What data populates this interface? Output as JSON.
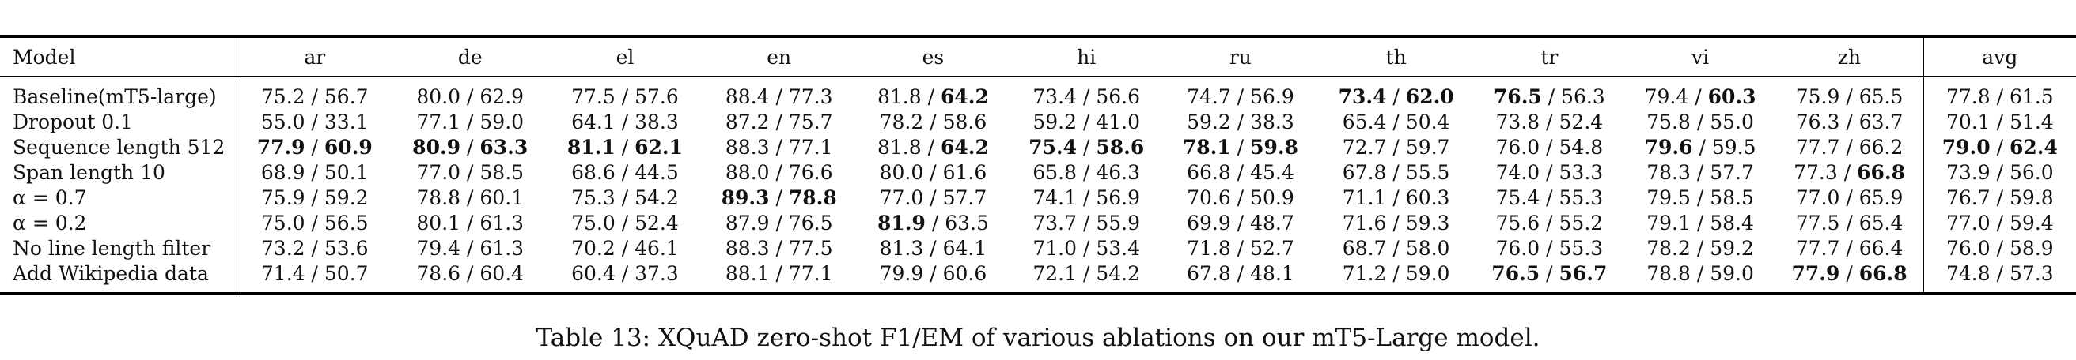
{
  "table": {
    "headers": [
      "Model",
      "ar",
      "de",
      "el",
      "en",
      "es",
      "hi",
      "ru",
      "th",
      "tr",
      "vi",
      "zh",
      "avg"
    ],
    "rows": [
      {
        "model": "Baseline(mT5-large)",
        "cells": [
          {
            "f1": "75.2",
            "em": "56.7"
          },
          {
            "f1": "80.0",
            "em": "62.9"
          },
          {
            "f1": "77.5",
            "em": "57.6"
          },
          {
            "f1": "88.4",
            "em": "77.3"
          },
          {
            "f1": "81.8",
            "em": "64.2",
            "em_bold": true
          },
          {
            "f1": "73.4",
            "em": "56.6"
          },
          {
            "f1": "74.7",
            "em": "56.9"
          },
          {
            "f1": "73.4",
            "em": "62.0",
            "f1_bold": true,
            "em_bold": true
          },
          {
            "f1": "76.5",
            "em": "56.3",
            "f1_bold": true
          },
          {
            "f1": "79.4",
            "em": "60.3",
            "em_bold": true
          },
          {
            "f1": "75.9",
            "em": "65.5"
          },
          {
            "f1": "77.8",
            "em": "61.5"
          }
        ]
      },
      {
        "model": "Dropout 0.1",
        "cells": [
          {
            "f1": "55.0",
            "em": "33.1"
          },
          {
            "f1": "77.1",
            "em": "59.0"
          },
          {
            "f1": "64.1",
            "em": "38.3"
          },
          {
            "f1": "87.2",
            "em": "75.7"
          },
          {
            "f1": "78.2",
            "em": "58.6"
          },
          {
            "f1": "59.2",
            "em": "41.0"
          },
          {
            "f1": "59.2",
            "em": "38.3"
          },
          {
            "f1": "65.4",
            "em": "50.4"
          },
          {
            "f1": "73.8",
            "em": "52.4"
          },
          {
            "f1": "75.8",
            "em": "55.0"
          },
          {
            "f1": "76.3",
            "em": "63.7"
          },
          {
            "f1": "70.1",
            "em": "51.4"
          }
        ]
      },
      {
        "model": "Sequence length 512",
        "cells": [
          {
            "f1": "77.9",
            "em": "60.9",
            "f1_bold": true,
            "em_bold": true
          },
          {
            "f1": "80.9",
            "em": "63.3",
            "f1_bold": true,
            "em_bold": true
          },
          {
            "f1": "81.1",
            "em": "62.1",
            "f1_bold": true,
            "em_bold": true
          },
          {
            "f1": "88.3",
            "em": "77.1"
          },
          {
            "f1": "81.8",
            "em": "64.2",
            "em_bold": true
          },
          {
            "f1": "75.4",
            "em": "58.6",
            "f1_bold": true,
            "em_bold": true
          },
          {
            "f1": "78.1",
            "em": "59.8",
            "f1_bold": true,
            "em_bold": true
          },
          {
            "f1": "72.7",
            "em": "59.7"
          },
          {
            "f1": "76.0",
            "em": "54.8"
          },
          {
            "f1": "79.6",
            "em": "59.5",
            "f1_bold": true
          },
          {
            "f1": "77.7",
            "em": "66.2"
          },
          {
            "f1": "79.0",
            "em": "62.4",
            "f1_bold": true,
            "em_bold": true
          }
        ]
      },
      {
        "model": "Span length 10",
        "cells": [
          {
            "f1": "68.9",
            "em": "50.1"
          },
          {
            "f1": "77.0",
            "em": "58.5"
          },
          {
            "f1": "68.6",
            "em": "44.5"
          },
          {
            "f1": "88.0",
            "em": "76.6"
          },
          {
            "f1": "80.0",
            "em": "61.6"
          },
          {
            "f1": "65.8",
            "em": "46.3"
          },
          {
            "f1": "66.8",
            "em": "45.4"
          },
          {
            "f1": "67.8",
            "em": "55.5"
          },
          {
            "f1": "74.0",
            "em": "53.3"
          },
          {
            "f1": "78.3",
            "em": "57.7"
          },
          {
            "f1": "77.3",
            "em": "66.8",
            "em_bold": true
          },
          {
            "f1": "73.9",
            "em": "56.0"
          }
        ]
      },
      {
        "model": "α = 0.7",
        "cells": [
          {
            "f1": "75.9",
            "em": "59.2"
          },
          {
            "f1": "78.8",
            "em": "60.1"
          },
          {
            "f1": "75.3",
            "em": "54.2"
          },
          {
            "f1": "89.3",
            "em": "78.8",
            "f1_bold": true,
            "em_bold": true
          },
          {
            "f1": "77.0",
            "em": "57.7"
          },
          {
            "f1": "74.1",
            "em": "56.9"
          },
          {
            "f1": "70.6",
            "em": "50.9"
          },
          {
            "f1": "71.1",
            "em": "60.3"
          },
          {
            "f1": "75.4",
            "em": "55.3"
          },
          {
            "f1": "79.5",
            "em": "58.5"
          },
          {
            "f1": "77.0",
            "em": "65.9"
          },
          {
            "f1": "76.7",
            "em": "59.8"
          }
        ]
      },
      {
        "model": "α = 0.2",
        "cells": [
          {
            "f1": "75.0",
            "em": "56.5"
          },
          {
            "f1": "80.1",
            "em": "61.3"
          },
          {
            "f1": "75.0",
            "em": "52.4"
          },
          {
            "f1": "87.9",
            "em": "76.5"
          },
          {
            "f1": "81.9",
            "em": "63.5",
            "f1_bold": true
          },
          {
            "f1": "73.7",
            "em": "55.9"
          },
          {
            "f1": "69.9",
            "em": "48.7"
          },
          {
            "f1": "71.6",
            "em": "59.3"
          },
          {
            "f1": "75.6",
            "em": "55.2"
          },
          {
            "f1": "79.1",
            "em": "58.4"
          },
          {
            "f1": "77.5",
            "em": "65.4"
          },
          {
            "f1": "77.0",
            "em": "59.4"
          }
        ]
      },
      {
        "model": "No line length filter",
        "cells": [
          {
            "f1": "73.2",
            "em": "53.6"
          },
          {
            "f1": "79.4",
            "em": "61.3"
          },
          {
            "f1": "70.2",
            "em": "46.1"
          },
          {
            "f1": "88.3",
            "em": "77.5"
          },
          {
            "f1": "81.3",
            "em": "64.1"
          },
          {
            "f1": "71.0",
            "em": "53.4"
          },
          {
            "f1": "71.8",
            "em": "52.7"
          },
          {
            "f1": "68.7",
            "em": "58.0"
          },
          {
            "f1": "76.0",
            "em": "55.3"
          },
          {
            "f1": "78.2",
            "em": "59.2"
          },
          {
            "f1": "77.7",
            "em": "66.4"
          },
          {
            "f1": "76.0",
            "em": "58.9"
          }
        ]
      },
      {
        "model": "Add Wikipedia data",
        "cells": [
          {
            "f1": "71.4",
            "em": "50.7"
          },
          {
            "f1": "78.6",
            "em": "60.4"
          },
          {
            "f1": "60.4",
            "em": "37.3"
          },
          {
            "f1": "88.1",
            "em": "77.1"
          },
          {
            "f1": "79.9",
            "em": "60.6"
          },
          {
            "f1": "72.1",
            "em": "54.2"
          },
          {
            "f1": "67.8",
            "em": "48.1"
          },
          {
            "f1": "71.2",
            "em": "59.0"
          },
          {
            "f1": "76.5",
            "em": "56.7",
            "f1_bold": true,
            "em_bold": true
          },
          {
            "f1": "78.8",
            "em": "59.0"
          },
          {
            "f1": "77.9",
            "em": "66.8",
            "f1_bold": true,
            "em_bold": true
          },
          {
            "f1": "74.8",
            "em": "57.3"
          }
        ]
      }
    ]
  },
  "caption": "Table 13: XQuAD zero-shot F1/EM of various ablations on our mT5-Large model."
}
